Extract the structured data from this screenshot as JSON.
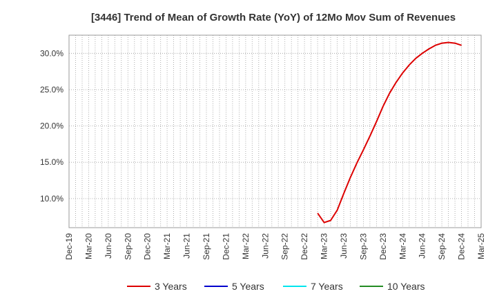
{
  "chart_data": {
    "type": "line",
    "title": "[3446]  Trend of Mean of Growth Rate (YoY) of 12Mo Mov Sum of Revenues",
    "xlabel": "",
    "ylabel": "",
    "grid": true,
    "legend_position": "bottom",
    "ylim": [
      6.0,
      32.5
    ],
    "y_ticks": [
      10.0,
      15.0,
      20.0,
      25.0,
      30.0
    ],
    "y_tick_labels": [
      "10.0%",
      "15.0%",
      "20.0%",
      "25.0%",
      "30.0%"
    ],
    "x_ticks": [
      "Dec-19",
      "Mar-20",
      "Jun-20",
      "Sep-20",
      "Dec-20",
      "Mar-21",
      "Jun-21",
      "Sep-21",
      "Dec-21",
      "Mar-22",
      "Jun-22",
      "Sep-22",
      "Dec-22",
      "Mar-23",
      "Jun-23",
      "Sep-23",
      "Dec-23",
      "Mar-24",
      "Jun-24",
      "Sep-24",
      "Dec-24",
      "Mar-25"
    ],
    "series": [
      {
        "name": "3 Years",
        "color": "#dd0000",
        "start": "Feb-23",
        "values": [
          8.0,
          6.7,
          7.0,
          8.4,
          10.7,
          12.9,
          14.9,
          16.7,
          18.6,
          20.6,
          22.7,
          24.5,
          26.0,
          27.3,
          28.4,
          29.3,
          30.0,
          30.6,
          31.1,
          31.4,
          31.5,
          31.4,
          31.1
        ]
      },
      {
        "name": "5 Years",
        "color": "#0000cc",
        "start": "",
        "values": []
      },
      {
        "name": "7 Years",
        "color": "#00e5ee",
        "start": "",
        "values": []
      },
      {
        "name": "10 Years",
        "color": "#228b22",
        "start": "",
        "values": []
      }
    ]
  }
}
